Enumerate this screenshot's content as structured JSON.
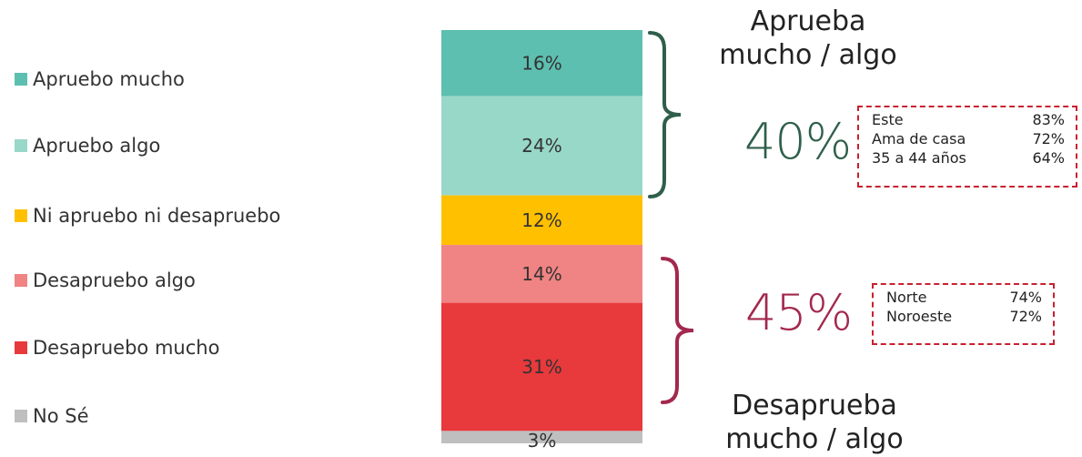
{
  "colors": {
    "aprueba": "#2f5f4b",
    "desaprueba": "#a3284d",
    "box_border": "#c9202f"
  },
  "chart_data": {
    "type": "bar",
    "stacked": true,
    "orientation": "vertical",
    "categories": [
      ""
    ],
    "unit": "%",
    "series": [
      {
        "name": "Apruebo mucho",
        "values": [
          16
        ],
        "label": "16%",
        "color": "#5dbfb0"
      },
      {
        "name": "Apruebo algo",
        "values": [
          24
        ],
        "label": "24%",
        "color": "#98d8c9"
      },
      {
        "name": "Ni apruebo ni desapruebo",
        "values": [
          12
        ],
        "label": "12%",
        "color": "#ffc000"
      },
      {
        "name": "Desapruebo algo",
        "values": [
          14
        ],
        "label": "14%",
        "color": "#f08383"
      },
      {
        "name": "Desapruebo mucho",
        "values": [
          31
        ],
        "label": "31%",
        "color": "#e8393c"
      },
      {
        "name": "No Sé",
        "values": [
          3
        ],
        "label": "3%",
        "color": "#bfbfbf"
      }
    ],
    "legend_position": "left",
    "annotations": {
      "aprueba": {
        "title": "Aprueba\nmucho / algo",
        "total": "40%",
        "breakdown": [
          {
            "label": "Este",
            "value": "83%"
          },
          {
            "label": "Ama de casa",
            "value": "72%"
          },
          {
            "label": "35 a 44 años",
            "value": "64%"
          }
        ]
      },
      "desaprueba": {
        "title": "Desaprueba\nmucho / algo",
        "total": "45%",
        "breakdown": [
          {
            "label": "Norte",
            "value": "74%"
          },
          {
            "label": "Noroeste",
            "value": "72%"
          }
        ]
      }
    }
  }
}
